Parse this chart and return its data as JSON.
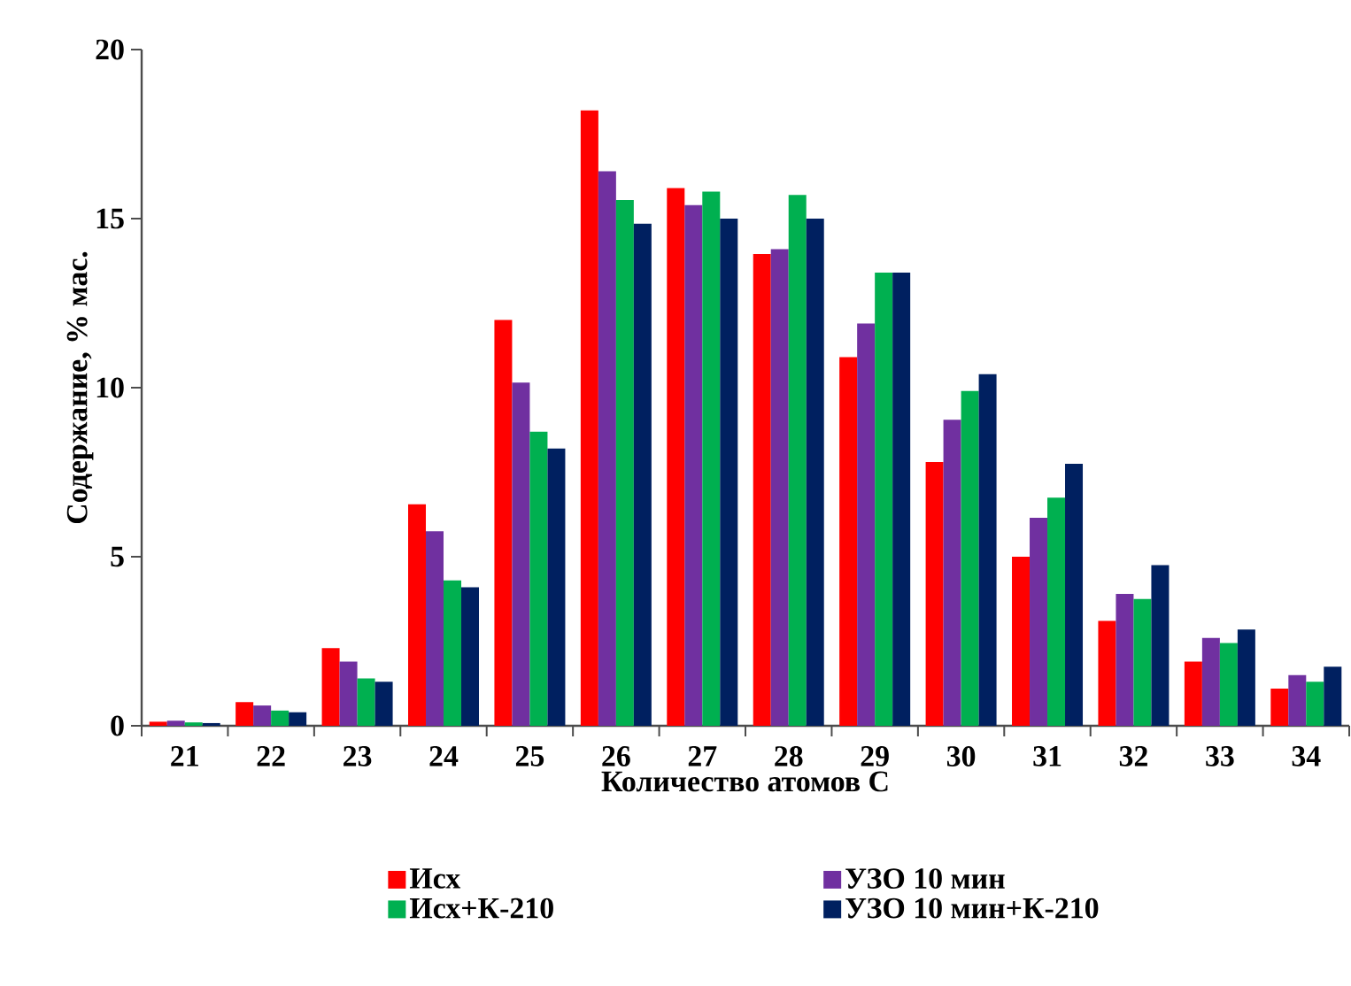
{
  "chart_data": {
    "type": "bar",
    "xlabel": "Количество атомов С",
    "ylabel": "Содержание, % мас.",
    "categories": [
      "21",
      "22",
      "23",
      "24",
      "25",
      "26",
      "27",
      "28",
      "29",
      "30",
      "31",
      "32",
      "33",
      "34"
    ],
    "series": [
      {
        "name": "Исх",
        "color": "#ff0000",
        "values": [
          0.12,
          0.7,
          2.3,
          6.55,
          12.0,
          18.2,
          15.9,
          13.95,
          10.9,
          7.8,
          5.0,
          3.1,
          1.9,
          1.1
        ]
      },
      {
        "name": "УЗО 10 мин",
        "color": "#7030a0",
        "values": [
          0.15,
          0.6,
          1.9,
          5.75,
          10.15,
          16.4,
          15.4,
          14.1,
          11.9,
          9.05,
          6.15,
          3.9,
          2.6,
          1.5
        ]
      },
      {
        "name": "Исх+К-210",
        "color": "#00b050",
        "values": [
          0.1,
          0.45,
          1.4,
          4.3,
          8.7,
          15.55,
          15.8,
          15.7,
          13.4,
          9.9,
          6.75,
          3.75,
          2.45,
          1.3
        ]
      },
      {
        "name": "УЗО 10 мин+К-210",
        "color": "#002060",
        "values": [
          0.08,
          0.4,
          1.3,
          4.1,
          8.2,
          14.85,
          15.0,
          15.0,
          13.4,
          10.4,
          7.75,
          4.75,
          2.85,
          1.75
        ]
      }
    ],
    "ylim": [
      0,
      20
    ],
    "yticks": [
      0,
      5,
      10,
      15,
      20
    ],
    "grid": false,
    "legend": "bottom"
  }
}
